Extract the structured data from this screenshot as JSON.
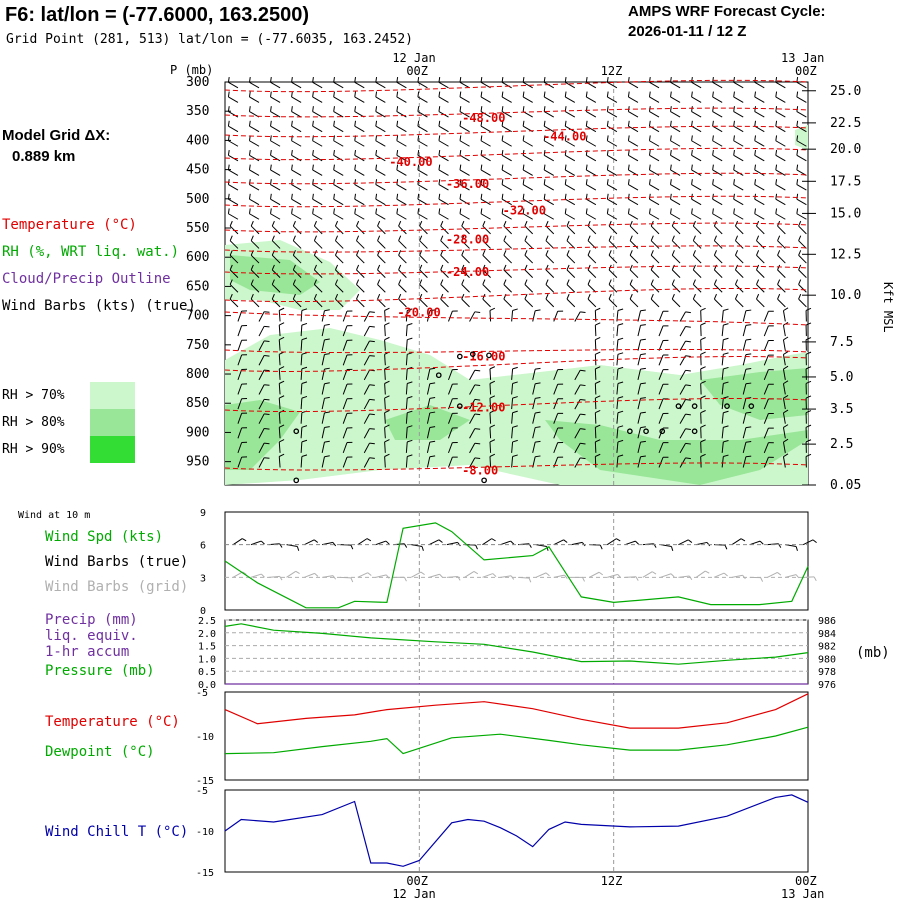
{
  "header": {
    "title": "F6:  lat/lon = (-77.6000, 163.2500)",
    "grid_point": "Grid Point (281, 513) lat/lon = (-77.6035, 163.2452)",
    "cycle_line1": "AMPS WRF Forecast Cycle:",
    "cycle_line2": "2026-01-11 / 12  Z"
  },
  "model": {
    "label": "Model Grid ΔX:",
    "value": "0.889 km"
  },
  "legend": {
    "temperature": "Temperature (°C)",
    "rh": "RH (%, WRT liq. wat.)",
    "cloud": "Cloud/Precip Outline",
    "barbs": "Wind Barbs (kts) (true)",
    "rh70": "RH > 70%",
    "rh80": "RH > 80%",
    "rh90": "RH > 90%"
  },
  "time_axis": {
    "top_dates": [
      "12 Jan",
      "13 Jan"
    ],
    "ticks": [
      "00Z",
      "12Z",
      "00Z"
    ],
    "p_unit": "P (mb)"
  },
  "right_axis_label": "Kft MSL",
  "panels": {
    "wind_at_10m": "Wind at 10 m",
    "wind_spd": "Wind Spd (kts)",
    "wind_barbs_true": "Wind Barbs (true)",
    "wind_barbs_grid": "Wind Barbs (grid)",
    "precip1": "Precip (mm)",
    "precip2": "liq. equiv.",
    "precip3": "1-hr accum",
    "pressure": "Pressure (mb)",
    "pressure_unit": "(mb)",
    "temperature": "Temperature (°C)",
    "dewpoint": "Dewpoint (°C)",
    "windchill": "Wind Chill T (°C)"
  },
  "colors": {
    "temp": "#e00000",
    "rh_green": "#00aa00",
    "cloud": "#7030a0",
    "grey": "#b0b0b0",
    "blue": "#0000aa",
    "rh70": "#ccf7cc",
    "rh80": "#99e699",
    "rh90": "#33dd33"
  },
  "chart_data": [
    {
      "type": "contour",
      "name": "cross-section",
      "x_range_hours": [
        0,
        36
      ],
      "pressure_ticks": [
        300,
        350,
        400,
        450,
        500,
        550,
        600,
        650,
        700,
        750,
        800,
        850,
        900,
        950
      ],
      "height_ticks_kft": [
        "25.0",
        "22.5",
        "20.0",
        "17.5",
        "15.0",
        "12.5",
        "10.0",
        "7.5",
        "5.0",
        "3.5",
        "2.5",
        "0.05"
      ],
      "height_tick_pressures": [
        315,
        370,
        415,
        470,
        525,
        595,
        665,
        745,
        805,
        860,
        920,
        990
      ],
      "temperature_labels": [
        {
          "text": "-48.00",
          "t": 16,
          "p": 362
        },
        {
          "text": "-44.00",
          "t": 21,
          "p": 393
        },
        {
          "text": "-40.00",
          "t": 11.5,
          "p": 437
        },
        {
          "text": "-36.00",
          "t": 15,
          "p": 475
        },
        {
          "text": "-32.00",
          "t": 18.5,
          "p": 520
        },
        {
          "text": "-28.00",
          "t": 15,
          "p": 570
        },
        {
          "text": "-24.00",
          "t": 15,
          "p": 625
        },
        {
          "text": "-20.00",
          "t": 12,
          "p": 695
        },
        {
          "text": "-16.00",
          "t": 16,
          "p": 770
        },
        {
          "text": "-12.00",
          "t": 16,
          "p": 857
        },
        {
          "text": "-8.00",
          "t": 16,
          "p": 965
        }
      ]
    },
    {
      "type": "line",
      "name": "wind speed at 10 m",
      "series": [
        {
          "name": "Wind Spd (kts)",
          "x": [
            0,
            2,
            5,
            7,
            8,
            10,
            11,
            13,
            14,
            16,
            19,
            20,
            21,
            22,
            24,
            28,
            30,
            33,
            35,
            36
          ],
          "values": [
            4.5,
            2.5,
            0.2,
            0.2,
            0.8,
            0.7,
            7.5,
            8,
            7.2,
            4.6,
            5,
            5.8,
            3.5,
            1.2,
            0.7,
            1.2,
            0.5,
            0.5,
            0.8,
            4
          ]
        }
      ],
      "xlim": [
        0,
        36
      ],
      "ylim": [
        0,
        9
      ],
      "yticks": [
        "0",
        "3",
        "6",
        "9"
      ]
    },
    {
      "type": "line",
      "name": "precip and pressure",
      "series": [
        {
          "name": "Precip (mm)",
          "x": [
            0,
            36
          ],
          "values": [
            0,
            0
          ]
        },
        {
          "name": "Pressure (mb)",
          "x": [
            0,
            1,
            3,
            6,
            9,
            13,
            16,
            19,
            22,
            25,
            28,
            31,
            34,
            36
          ],
          "values": [
            985.0,
            985.4,
            984.4,
            983.9,
            983.2,
            982.6,
            982.2,
            981.0,
            979.5,
            979.6,
            979.1,
            979.7,
            980.2,
            980.9
          ]
        }
      ],
      "xlim": [
        0,
        36
      ],
      "ylim_left": [
        0,
        2.5
      ],
      "ylim_right": [
        976,
        986
      ],
      "yticks_left": [
        "0.0",
        "0.5",
        "1.0",
        "1.5",
        "2.0",
        "2.5"
      ],
      "yticks_right": [
        "976",
        "978",
        "980",
        "982",
        "984",
        "986"
      ]
    },
    {
      "type": "line",
      "name": "temperature and dewpoint",
      "series": [
        {
          "name": "Temperature (°C)",
          "x": [
            0,
            2,
            5,
            8,
            10,
            13,
            16,
            19,
            22,
            25,
            28,
            31,
            34,
            36
          ],
          "values": [
            -7,
            -8.6,
            -8,
            -7.6,
            -7,
            -6.5,
            -6.1,
            -6.9,
            -8.1,
            -9.1,
            -9.1,
            -8.5,
            -7,
            -5.2
          ]
        },
        {
          "name": "Dewpoint (°C)",
          "x": [
            0,
            3,
            6,
            9,
            10,
            11,
            14,
            17,
            20,
            22,
            25,
            28,
            31,
            34,
            36
          ],
          "values": [
            -12,
            -11.9,
            -11.2,
            -10.6,
            -10.3,
            -12,
            -10.2,
            -9.8,
            -10.5,
            -11,
            -11.6,
            -11.6,
            -11,
            -10,
            -9
          ]
        }
      ],
      "xlim": [
        0,
        36
      ],
      "ylim": [
        -15,
        -5
      ],
      "yticks": [
        "-5",
        "-10",
        "-15"
      ]
    },
    {
      "type": "line",
      "name": "wind chill",
      "series": [
        {
          "name": "Wind Chill T (°C)",
          "x": [
            0,
            1,
            3,
            6,
            8,
            9,
            10,
            11,
            12,
            14,
            15,
            16,
            17,
            18,
            19,
            20,
            21,
            22,
            25,
            28,
            31,
            34,
            35,
            36
          ],
          "values": [
            -10,
            -8.6,
            -8.9,
            -8,
            -6.4,
            -13.9,
            -13.9,
            -14.3,
            -13.6,
            -9,
            -8.6,
            -8.8,
            -9.6,
            -10.6,
            -11.9,
            -9.8,
            -8.9,
            -9.2,
            -9.5,
            -9.4,
            -8.2,
            -5.9,
            -5.6,
            -6.5
          ]
        }
      ],
      "xlim": [
        0,
        36
      ],
      "ylim": [
        -15,
        -5
      ],
      "yticks": [
        "-5",
        "-10",
        "-15"
      ]
    }
  ]
}
